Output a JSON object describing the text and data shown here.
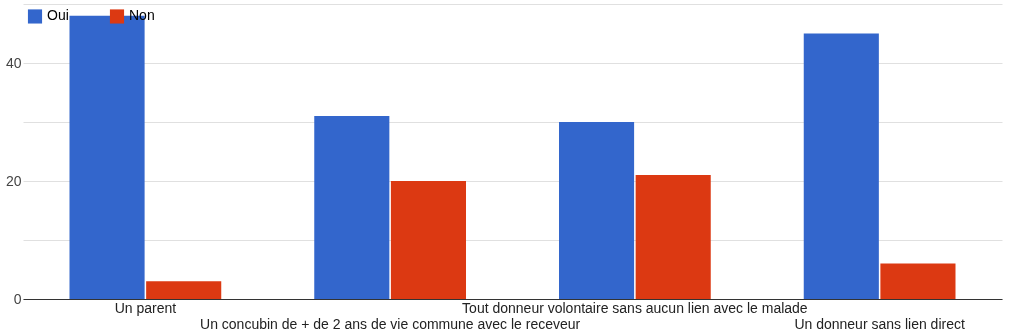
{
  "chart_data": {
    "type": "bar",
    "categories": [
      "Un parent",
      "Un concubin de + de 2 ans de vie commune avec le receveur",
      "Tout donneur volontaire sans aucun lien avec le malade",
      "Un donneur sans lien direct"
    ],
    "series": [
      {
        "name": "Oui",
        "color": "#3366cc",
        "values": [
          48,
          31,
          30,
          45
        ]
      },
      {
        "name": "Non",
        "color": "#dc3912",
        "values": [
          3,
          20,
          21,
          6
        ]
      }
    ],
    "ylim": [
      0,
      50
    ],
    "yticks": [
      0,
      {
        "value": 10,
        "label": null
      },
      20,
      {
        "value": 30,
        "label": null
      },
      40,
      {
        "value": 50,
        "label": null
      }
    ],
    "grid": "y",
    "legend": "top left"
  }
}
